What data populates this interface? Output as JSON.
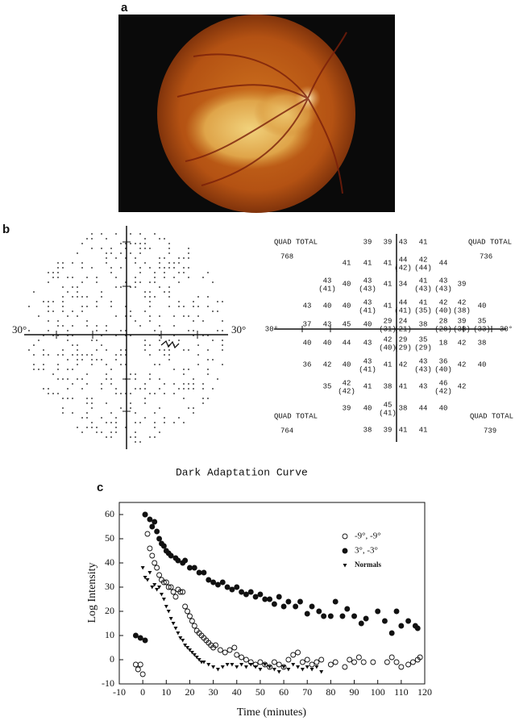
{
  "panels": {
    "a": {
      "label": "a"
    },
    "b": {
      "label": "b",
      "left_axis_labels": [
        "30°",
        "30°"
      ],
      "right": {
        "axis_labels": [
          "30°",
          "30°"
        ],
        "quads": [
          {
            "label": "QUAD TOTAL",
            "total": 768
          },
          {
            "label": "QUAD TOTAL",
            "total": 736
          },
          {
            "label": "QUAD TOTAL",
            "total": 764
          },
          {
            "label": "QUAD TOTAL",
            "total": 739
          }
        ],
        "rows": [
          [
            null,
            null,
            null,
            [
              "39"
            ],
            [
              "39"
            ],
            [
              "43"
            ],
            [
              "41"
            ],
            null,
            null,
            null
          ],
          [
            null,
            null,
            [
              "41"
            ],
            [
              "41"
            ],
            [
              "41"
            ],
            [
              "44",
              "(42)"
            ],
            [
              "42",
              "(44)"
            ],
            [
              "44"
            ],
            null,
            null
          ],
          [
            null,
            [
              "43",
              "(41)"
            ],
            [
              "40"
            ],
            [
              "43",
              "(43)"
            ],
            [
              "41"
            ],
            [
              "34"
            ],
            [
              "41",
              "(43)"
            ],
            [
              "43",
              "(43)"
            ],
            [
              "39"
            ],
            null
          ],
          [
            [
              "43"
            ],
            [
              "40"
            ],
            [
              "40"
            ],
            [
              "43",
              "(41)"
            ],
            [
              "41"
            ],
            [
              "44",
              "(41)"
            ],
            [
              "41",
              "(35)"
            ],
            [
              "42",
              "(40)"
            ],
            [
              "42",
              "(38)"
            ],
            [
              "40"
            ]
          ],
          [
            [
              "37"
            ],
            [
              "43"
            ],
            [
              "45"
            ],
            [
              "40"
            ],
            [
              "29",
              "(31)"
            ],
            [
              "24",
              "(21)"
            ],
            [
              "38"
            ],
            [
              "28",
              "(28)"
            ],
            [
              "39",
              "(38)"
            ],
            [
              "35",
              "(33)"
            ]
          ],
          [
            [
              "40"
            ],
            [
              "40"
            ],
            [
              "44"
            ],
            [
              "43"
            ],
            [
              "42",
              "(40)"
            ],
            [
              "29",
              "(29)"
            ],
            [
              "35",
              "(29)"
            ],
            [
              "18"
            ],
            [
              "42"
            ],
            [
              "38"
            ]
          ],
          [
            [
              "36"
            ],
            [
              "42"
            ],
            [
              "40"
            ],
            [
              "43",
              "(41)"
            ],
            [
              "41"
            ],
            [
              "42"
            ],
            [
              "43",
              "(43)"
            ],
            [
              "36",
              "(40)"
            ],
            [
              "42"
            ],
            [
              "40"
            ]
          ],
          [
            null,
            [
              "35"
            ],
            [
              "42",
              "(42)"
            ],
            [
              "41"
            ],
            [
              "38"
            ],
            [
              "41"
            ],
            [
              "43"
            ],
            [
              "46",
              "(42)"
            ],
            [
              "42"
            ],
            null
          ],
          [
            null,
            null,
            [
              "39"
            ],
            [
              "40"
            ],
            [
              "45",
              "(41)"
            ],
            [
              "38"
            ],
            [
              "44"
            ],
            [
              "40"
            ],
            null,
            null
          ],
          [
            null,
            null,
            null,
            [
              "38"
            ],
            [
              "39"
            ],
            [
              "41"
            ],
            [
              "41"
            ],
            null,
            null,
            null
          ]
        ]
      }
    }
  },
  "chart_data": {
    "type": "scatter",
    "panel_label": "c",
    "title": "Dark Adaptation Curve",
    "xlabel": "Time (minutes)",
    "ylabel": "Log Intensity",
    "xlim": [
      -10,
      120
    ],
    "xticks": [
      -10,
      0,
      10,
      20,
      30,
      40,
      50,
      60,
      70,
      80,
      90,
      100,
      110,
      120
    ],
    "ylim": [
      -10,
      65
    ],
    "yticks": [
      -10,
      0,
      10,
      20,
      30,
      40,
      50,
      60
    ],
    "legend": "upper right",
    "series": [
      {
        "name": "-9°, -9°",
        "color": "#111",
        "marker": "open-circle",
        "x": [
          -3,
          -2,
          -1,
          0,
          1,
          2,
          3,
          4,
          5,
          6,
          7,
          8,
          9,
          10,
          11,
          12,
          13,
          14,
          15,
          16,
          17,
          18,
          19,
          20,
          21,
          22,
          23,
          24,
          25,
          26,
          27,
          28,
          29,
          30,
          31,
          33,
          35,
          37,
          39,
          40,
          42,
          44,
          46,
          48,
          50,
          52,
          54,
          56,
          58,
          60,
          62,
          64,
          66,
          68,
          70,
          72,
          74,
          76,
          80,
          82,
          86,
          88,
          90,
          92,
          94,
          98,
          104,
          106,
          108,
          110,
          113,
          115,
          117,
          118
        ],
        "values": [
          -2,
          -4,
          -2,
          -6,
          60,
          52,
          46,
          43,
          40,
          38,
          35,
          33,
          32,
          32,
          30,
          30,
          28,
          26,
          29,
          28,
          28,
          22,
          20,
          18,
          16,
          14,
          12,
          11,
          10,
          9,
          8,
          7,
          6,
          5,
          6,
          4,
          3,
          4,
          5,
          2,
          1,
          0,
          -1,
          -2,
          -1,
          -2,
          -3,
          -1,
          -2,
          -3,
          0,
          2,
          3,
          -1,
          0,
          -2,
          -1,
          0,
          -2,
          -1,
          -3,
          0,
          -1,
          1,
          -1,
          -1,
          -1,
          1,
          -1,
          -3,
          -2,
          -1,
          0,
          1
        ]
      },
      {
        "name": "3°, -3°",
        "color": "#111",
        "marker": "filled-circle",
        "x": [
          -3,
          -1,
          1,
          1,
          3,
          4,
          5,
          6,
          7,
          8,
          9,
          10,
          11,
          12,
          14,
          15,
          17,
          18,
          20,
          22,
          24,
          26,
          28,
          30,
          32,
          34,
          36,
          38,
          40,
          42,
          44,
          46,
          48,
          50,
          52,
          54,
          56,
          58,
          60,
          62,
          65,
          67,
          70,
          72,
          75,
          77,
          80,
          82,
          85,
          87,
          90,
          93,
          95,
          100,
          103,
          106,
          108,
          110,
          113,
          116,
          117
        ],
        "values": [
          10,
          9,
          8,
          60,
          58,
          55,
          57,
          53,
          50,
          48,
          47,
          45,
          44,
          43,
          42,
          41,
          40,
          41,
          38,
          38,
          36,
          36,
          33,
          32,
          31,
          32,
          30,
          29,
          30,
          28,
          27,
          28,
          26,
          27,
          25,
          25,
          23,
          26,
          22,
          24,
          22,
          24,
          19,
          22,
          20,
          18,
          18,
          24,
          18,
          21,
          18,
          15,
          17,
          20,
          16,
          11,
          20,
          14,
          16,
          14,
          13
        ]
      },
      {
        "name": "Normals",
        "color": "#111",
        "marker": "triangle-down",
        "x": [
          0,
          1,
          2,
          3,
          4,
          5,
          6,
          7,
          8,
          9,
          10,
          11,
          12,
          13,
          14,
          15,
          16,
          17,
          18,
          19,
          20,
          21,
          22,
          23,
          24,
          25,
          26,
          28,
          30,
          32,
          34,
          36,
          38,
          40,
          42,
          44,
          46,
          48,
          50,
          52,
          54,
          56,
          58,
          60,
          62,
          64,
          66,
          68,
          70,
          72,
          74,
          76
        ],
        "values": [
          38,
          34,
          33,
          36,
          30,
          31,
          29,
          30,
          27,
          25,
          22,
          20,
          17,
          15,
          13,
          11,
          9,
          8,
          6,
          5,
          4,
          3,
          2,
          1,
          0,
          -1,
          -1,
          -2,
          -3,
          -4,
          -3,
          -2,
          -2,
          -3,
          -2,
          -3,
          -2,
          -3,
          -4,
          -2,
          -3,
          -4,
          -5,
          -3,
          -4,
          -2,
          -3,
          -4,
          -3,
          -4,
          -3,
          -5
        ]
      }
    ]
  }
}
